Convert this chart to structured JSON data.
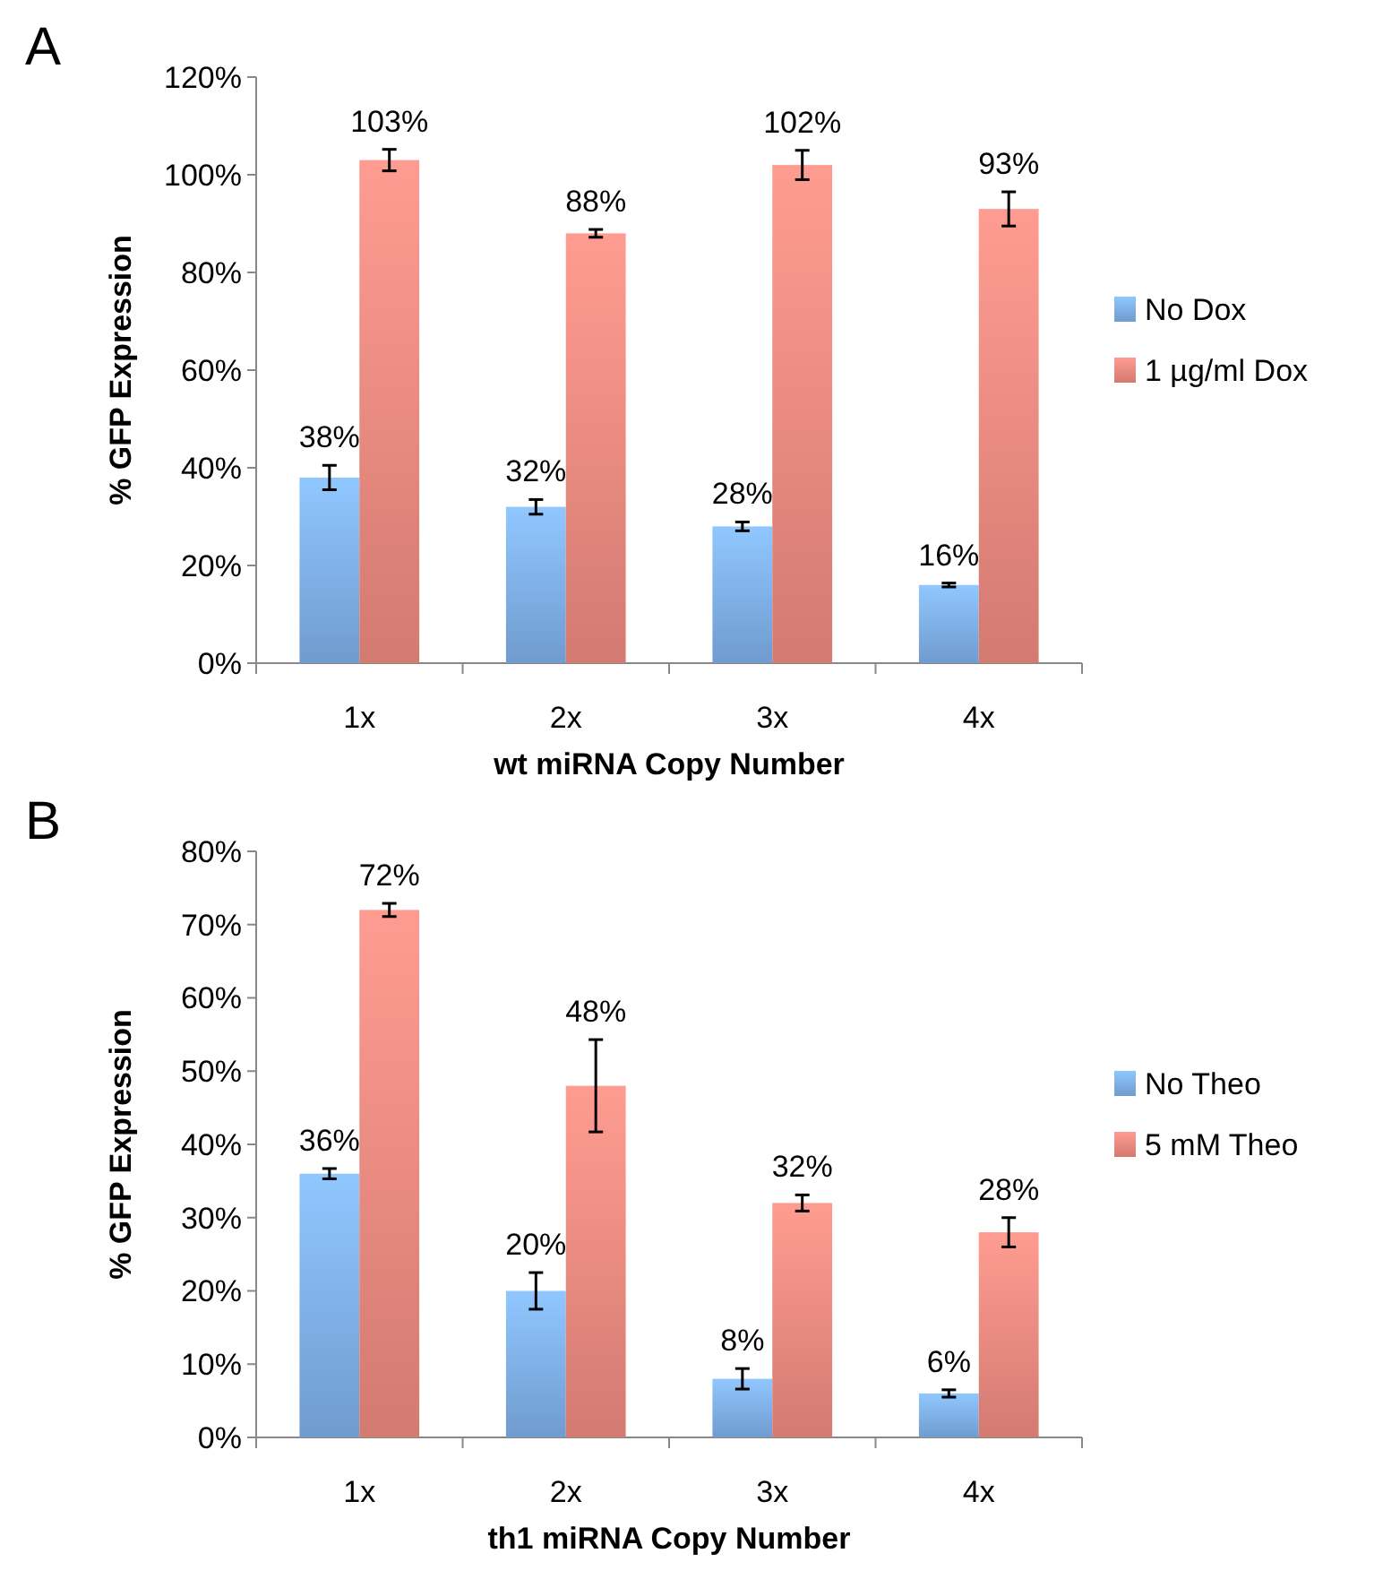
{
  "chart_data": [
    {
      "type": "bar",
      "title": "A",
      "xlabel": "wt miRNA Copy Number",
      "ylabel": "% GFP Expression",
      "categories": [
        "1x",
        "2x",
        "3x",
        "4x"
      ],
      "series": [
        {
          "name": "No Dox",
          "color": "#7fb0ea",
          "values": [
            38,
            32,
            28,
            16
          ],
          "errors": [
            2.5,
            1.5,
            0.9,
            0.4
          ]
        },
        {
          "name": "1 µg/ml Dox",
          "color": "#ef8a80",
          "values": [
            103,
            88,
            102,
            93
          ],
          "errors": [
            2.2,
            0.8,
            3,
            3.5
          ]
        }
      ],
      "ylim": [
        0,
        120
      ],
      "yticks": [
        {
          "value": 0,
          "label": "0%"
        },
        {
          "value": 20,
          "label": "20%"
        },
        {
          "value": 40,
          "label": "40%"
        },
        {
          "value": 60,
          "label": "60%"
        },
        {
          "value": 80,
          "label": "80%"
        },
        {
          "value": 100,
          "label": "100%"
        },
        {
          "value": 120,
          "label": "120%"
        }
      ],
      "value_labels": [
        [
          "38%",
          "32%",
          "28%",
          "16%"
        ],
        [
          "103%",
          "88%",
          "102%",
          "93%"
        ]
      ],
      "legend": "right",
      "grid": false
    },
    {
      "type": "bar",
      "title": "B",
      "xlabel": "th1 miRNA Copy Number",
      "ylabel": "% GFP Expression",
      "categories": [
        "1x",
        "2x",
        "3x",
        "4x"
      ],
      "series": [
        {
          "name": "No Theo",
          "color": "#7fb0ea",
          "values": [
            36,
            20,
            8,
            6
          ],
          "errors": [
            0.7,
            2.5,
            1.4,
            0.5
          ]
        },
        {
          "name": "5 mM Theo",
          "color": "#ef8a80",
          "values": [
            72,
            48,
            32,
            28
          ],
          "errors": [
            0.9,
            6.3,
            1.1,
            2
          ]
        }
      ],
      "ylim": [
        0,
        80
      ],
      "yticks": [
        {
          "value": 0,
          "label": "0%"
        },
        {
          "value": 10,
          "label": "10%"
        },
        {
          "value": 20,
          "label": "20%"
        },
        {
          "value": 30,
          "label": "30%"
        },
        {
          "value": 40,
          "label": "40%"
        },
        {
          "value": 50,
          "label": "50%"
        },
        {
          "value": 60,
          "label": "60%"
        },
        {
          "value": 70,
          "label": "70%"
        },
        {
          "value": 80,
          "label": "80%"
        }
      ],
      "value_labels": [
        [
          "36%",
          "20%",
          "8%",
          "6%"
        ],
        [
          "72%",
          "48%",
          "32%",
          "28%"
        ]
      ],
      "legend": "right",
      "grid": false
    }
  ]
}
